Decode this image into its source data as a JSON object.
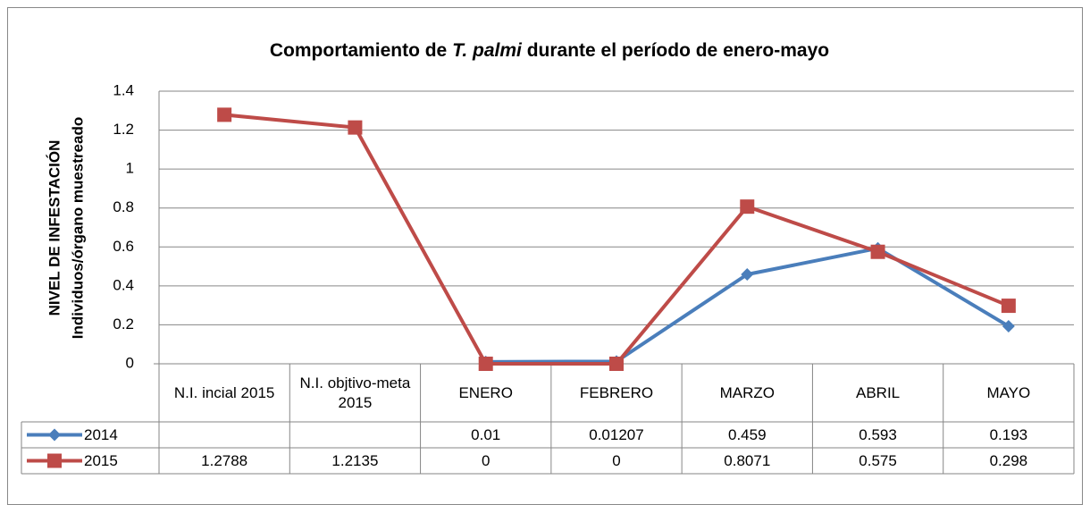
{
  "chart_data": {
    "type": "line",
    "title": [
      {
        "text": "Comportamiento de "
      },
      {
        "text": "T. palmi",
        "italic": true
      },
      {
        "text": " durante el período de enero-mayo"
      }
    ],
    "ylabel": [
      "NIVEL DE INFESTACIÓN",
      "Individuos/órgano muestreado"
    ],
    "categories": [
      "N.I. incial 2015",
      "N.I. objtivo-meta 2015",
      "ENERO",
      "FEBRERO",
      "MARZO",
      "ABRIL",
      "MAYO"
    ],
    "series": [
      {
        "name": "2014",
        "color": "#4a7ebb",
        "marker": "diamond",
        "values": [
          null,
          null,
          0.01,
          0.01207,
          0.459,
          0.593,
          0.193
        ]
      },
      {
        "name": "2015",
        "color": "#be4b48",
        "marker": "square",
        "values": [
          1.2788,
          1.2135,
          0,
          0,
          0.8071,
          0.575,
          0.298
        ]
      }
    ],
    "ylim": [
      0,
      1.4
    ],
    "yticks": [
      0,
      0.2,
      0.4,
      0.6,
      0.8,
      1,
      1.2,
      1.4
    ],
    "grid": true,
    "data_table": true
  }
}
